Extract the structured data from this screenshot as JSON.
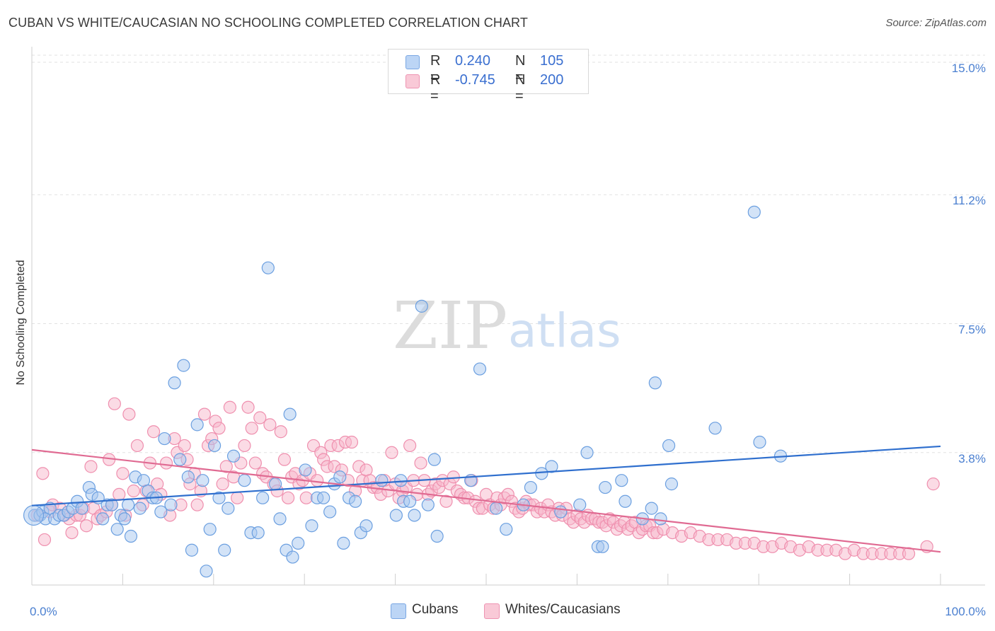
{
  "title": "CUBAN VS WHITE/CAUCASIAN NO SCHOOLING COMPLETED CORRELATION CHART",
  "source": "Source: ZipAtlas.com",
  "watermark": {
    "zip": "ZIP",
    "atlas": "atlas"
  },
  "legend_top": [
    {
      "r_label": "R =",
      "r_value": "0.240",
      "n_label": "N =",
      "n_value": "105",
      "color": "#a8c8f0"
    },
    {
      "r_label": "R =",
      "r_value": "-0.745",
      "n_label": "N =",
      "n_value": "200",
      "color": "#f7b8cb"
    }
  ],
  "legend_bottom": [
    {
      "label": "Cubans",
      "color": "#a8c8f0"
    },
    {
      "label": "Whites/Caucasians",
      "color": "#f7b8cb"
    }
  ],
  "chart_data": {
    "type": "scatter",
    "ylabel": "No Schooling Completed",
    "x_tick_labels": [
      "0.0%",
      "100.0%"
    ],
    "y_tick_labels": [
      "15.0%",
      "11.2%",
      "7.5%",
      "3.8%"
    ],
    "y_ticks": [
      15.0,
      11.2,
      7.5,
      3.8
    ],
    "xlim": [
      0,
      100
    ],
    "ylim": [
      0,
      15.0
    ],
    "grid": true,
    "series": [
      {
        "name": "Cubans",
        "color": "#6b9fe0",
        "fill": "#a8c8f0",
        "trend": {
          "x": [
            0,
            100
          ],
          "y": [
            2.28,
            3.98
          ],
          "color": "#2f6fce"
        },
        "points": [
          [
            0.3,
            2.0
          ],
          [
            0.9,
            2.0
          ],
          [
            1.2,
            2.1
          ],
          [
            1.5,
            1.9
          ],
          [
            2.0,
            2.2
          ],
          [
            2.5,
            1.9
          ],
          [
            3.0,
            2.0
          ],
          [
            3.5,
            2.0
          ],
          [
            4.0,
            2.1
          ],
          [
            4.5,
            2.2
          ],
          [
            5.0,
            2.4
          ],
          [
            5.5,
            2.2
          ],
          [
            6.3,
            2.8
          ],
          [
            6.6,
            2.6
          ],
          [
            7.3,
            2.5
          ],
          [
            7.8,
            1.9
          ],
          [
            8.3,
            2.3
          ],
          [
            8.8,
            2.3
          ],
          [
            9.4,
            1.6
          ],
          [
            9.8,
            2.0
          ],
          [
            10.2,
            1.9
          ],
          [
            10.6,
            2.3
          ],
          [
            10.9,
            1.4
          ],
          [
            11.4,
            3.1
          ],
          [
            11.9,
            2.2
          ],
          [
            12.3,
            3.0
          ],
          [
            12.8,
            2.7
          ],
          [
            13.3,
            2.5
          ],
          [
            13.7,
            2.5
          ],
          [
            14.2,
            2.1
          ],
          [
            14.6,
            4.2
          ],
          [
            15.3,
            2.3
          ],
          [
            15.7,
            5.8
          ],
          [
            16.3,
            3.6
          ],
          [
            16.7,
            6.3
          ],
          [
            17.2,
            3.1
          ],
          [
            17.6,
            1.0
          ],
          [
            18.2,
            4.6
          ],
          [
            18.8,
            3.0
          ],
          [
            19.2,
            0.4
          ],
          [
            19.6,
            1.6
          ],
          [
            20.1,
            4.0
          ],
          [
            20.6,
            2.5
          ],
          [
            21.2,
            1.0
          ],
          [
            21.6,
            2.2
          ],
          [
            22.2,
            3.7
          ],
          [
            23.4,
            3.0
          ],
          [
            24.1,
            1.5
          ],
          [
            24.9,
            1.5
          ],
          [
            25.4,
            2.5
          ],
          [
            26.0,
            9.1
          ],
          [
            26.8,
            2.9
          ],
          [
            27.3,
            1.9
          ],
          [
            28.0,
            1.0
          ],
          [
            28.4,
            4.9
          ],
          [
            28.7,
            0.8
          ],
          [
            29.3,
            1.2
          ],
          [
            30.1,
            3.3
          ],
          [
            30.8,
            1.7
          ],
          [
            31.4,
            2.5
          ],
          [
            32.1,
            2.5
          ],
          [
            32.8,
            2.1
          ],
          [
            33.3,
            2.9
          ],
          [
            33.9,
            3.1
          ],
          [
            34.3,
            1.2
          ],
          [
            34.9,
            2.5
          ],
          [
            35.6,
            2.4
          ],
          [
            36.2,
            1.5
          ],
          [
            36.8,
            1.7
          ],
          [
            38.5,
            3.0
          ],
          [
            40.1,
            2.0
          ],
          [
            40.6,
            3.0
          ],
          [
            40.9,
            2.4
          ],
          [
            41.6,
            2.4
          ],
          [
            42.1,
            2.0
          ],
          [
            42.9,
            8.0
          ],
          [
            43.6,
            2.3
          ],
          [
            44.3,
            3.6
          ],
          [
            44.6,
            1.4
          ],
          [
            48.3,
            3.0
          ],
          [
            49.3,
            6.2
          ],
          [
            51.1,
            2.2
          ],
          [
            52.2,
            1.6
          ],
          [
            54.1,
            2.3
          ],
          [
            54.9,
            2.8
          ],
          [
            56.1,
            3.2
          ],
          [
            57.2,
            3.4
          ],
          [
            58.2,
            2.1
          ],
          [
            60.3,
            2.3
          ],
          [
            61.1,
            3.8
          ],
          [
            62.3,
            1.1
          ],
          [
            62.8,
            1.1
          ],
          [
            63.1,
            2.8
          ],
          [
            64.9,
            3.0
          ],
          [
            65.3,
            2.4
          ],
          [
            67.2,
            1.9
          ],
          [
            68.2,
            2.2
          ],
          [
            68.6,
            5.8
          ],
          [
            69.2,
            1.9
          ],
          [
            70.1,
            4.0
          ],
          [
            70.4,
            2.9
          ],
          [
            75.2,
            4.5
          ],
          [
            79.5,
            10.7
          ],
          [
            80.1,
            4.1
          ],
          [
            82.4,
            3.7
          ]
        ]
      },
      {
        "name": "Whites/Caucasians",
        "color": "#ef8fae",
        "fill": "#f7b8cb",
        "trend": {
          "x": [
            0,
            100
          ],
          "y": [
            3.88,
            0.95
          ],
          "color": "#e06a92"
        },
        "points": [
          [
            0.6,
            2.0
          ],
          [
            1.2,
            3.2
          ],
          [
            1.4,
            1.3
          ],
          [
            2.0,
            2.1
          ],
          [
            2.3,
            2.3
          ],
          [
            3.1,
            2.2
          ],
          [
            3.6,
            2.0
          ],
          [
            4.1,
            1.9
          ],
          [
            4.4,
            1.5
          ],
          [
            4.9,
            2.0
          ],
          [
            5.3,
            2.0
          ],
          [
            5.7,
            2.2
          ],
          [
            6.0,
            1.7
          ],
          [
            6.5,
            3.4
          ],
          [
            6.8,
            2.2
          ],
          [
            7.2,
            1.9
          ],
          [
            7.6,
            2.0
          ],
          [
            8.2,
            2.1
          ],
          [
            8.5,
            3.6
          ],
          [
            8.8,
            2.3
          ],
          [
            9.1,
            5.2
          ],
          [
            9.6,
            2.6
          ],
          [
            10.0,
            3.2
          ],
          [
            10.3,
            2.0
          ],
          [
            10.7,
            4.9
          ],
          [
            11.2,
            2.7
          ],
          [
            11.6,
            4.0
          ],
          [
            12.2,
            2.3
          ],
          [
            12.6,
            2.7
          ],
          [
            13.0,
            3.5
          ],
          [
            13.4,
            4.4
          ],
          [
            13.8,
            2.9
          ],
          [
            14.2,
            2.6
          ],
          [
            14.8,
            3.5
          ],
          [
            15.2,
            2.0
          ],
          [
            15.7,
            4.2
          ],
          [
            16.0,
            3.8
          ],
          [
            16.4,
            2.3
          ],
          [
            16.8,
            4.0
          ],
          [
            17.1,
            3.6
          ],
          [
            17.4,
            2.9
          ],
          [
            17.9,
            3.2
          ],
          [
            18.2,
            2.3
          ],
          [
            18.6,
            2.7
          ],
          [
            19.0,
            4.9
          ],
          [
            19.4,
            4.0
          ],
          [
            19.8,
            4.2
          ],
          [
            20.2,
            4.7
          ],
          [
            20.6,
            4.5
          ],
          [
            21.0,
            2.9
          ],
          [
            21.4,
            3.4
          ],
          [
            21.8,
            5.1
          ],
          [
            22.2,
            3.1
          ],
          [
            22.6,
            2.5
          ],
          [
            23.0,
            3.5
          ],
          [
            23.4,
            4.0
          ],
          [
            23.8,
            5.1
          ],
          [
            24.2,
            4.5
          ],
          [
            24.6,
            3.5
          ],
          [
            25.1,
            4.8
          ],
          [
            25.4,
            3.2
          ],
          [
            25.8,
            3.1
          ],
          [
            26.2,
            4.6
          ],
          [
            26.6,
            2.9
          ],
          [
            27.0,
            2.7
          ],
          [
            27.4,
            4.4
          ],
          [
            27.8,
            3.6
          ],
          [
            28.2,
            2.5
          ],
          [
            28.6,
            3.1
          ],
          [
            29.0,
            3.2
          ],
          [
            29.4,
            2.9
          ],
          [
            29.8,
            3.0
          ],
          [
            30.2,
            2.5
          ],
          [
            30.6,
            3.2
          ],
          [
            31.0,
            4.0
          ],
          [
            31.4,
            3.0
          ],
          [
            31.8,
            3.8
          ],
          [
            32.1,
            3.6
          ],
          [
            32.5,
            3.4
          ],
          [
            32.9,
            4.0
          ],
          [
            33.3,
            3.4
          ],
          [
            33.7,
            4.0
          ],
          [
            34.1,
            3.3
          ],
          [
            34.5,
            4.1
          ],
          [
            34.8,
            3.0
          ],
          [
            35.2,
            4.1
          ],
          [
            35.6,
            2.7
          ],
          [
            36.0,
            3.4
          ],
          [
            36.4,
            3.0
          ],
          [
            36.8,
            3.3
          ],
          [
            37.2,
            3.0
          ],
          [
            37.6,
            2.8
          ],
          [
            38.0,
            2.8
          ],
          [
            38.4,
            2.6
          ],
          [
            38.8,
            3.0
          ],
          [
            39.2,
            2.7
          ],
          [
            39.6,
            3.8
          ],
          [
            40.0,
            2.9
          ],
          [
            40.4,
            2.5
          ],
          [
            40.8,
            2.7
          ],
          [
            41.2,
            2.8
          ],
          [
            41.6,
            4.0
          ],
          [
            42.0,
            3.0
          ],
          [
            42.4,
            2.6
          ],
          [
            42.8,
            3.5
          ],
          [
            43.2,
            3.0
          ],
          [
            43.6,
            2.6
          ],
          [
            44.0,
            2.7
          ],
          [
            44.4,
            2.9
          ],
          [
            44.8,
            2.8
          ],
          [
            45.2,
            3.0
          ],
          [
            45.6,
            2.4
          ],
          [
            46.0,
            2.9
          ],
          [
            46.4,
            3.1
          ],
          [
            46.8,
            2.7
          ],
          [
            47.2,
            2.6
          ],
          [
            47.6,
            2.5
          ],
          [
            48.0,
            2.5
          ],
          [
            48.4,
            3.0
          ],
          [
            48.8,
            2.4
          ],
          [
            49.2,
            2.2
          ],
          [
            49.6,
            2.2
          ],
          [
            50.0,
            2.6
          ],
          [
            50.4,
            2.3
          ],
          [
            50.8,
            2.2
          ],
          [
            51.2,
            2.5
          ],
          [
            51.6,
            2.3
          ],
          [
            52.0,
            2.5
          ],
          [
            52.4,
            2.6
          ],
          [
            52.8,
            2.4
          ],
          [
            53.2,
            2.2
          ],
          [
            53.6,
            2.1
          ],
          [
            54.0,
            2.2
          ],
          [
            54.4,
            2.4
          ],
          [
            54.8,
            2.3
          ],
          [
            55.2,
            2.3
          ],
          [
            55.6,
            2.1
          ],
          [
            56.0,
            2.2
          ],
          [
            56.4,
            2.1
          ],
          [
            56.8,
            2.3
          ],
          [
            57.2,
            2.1
          ],
          [
            57.6,
            2.0
          ],
          [
            58.0,
            2.2
          ],
          [
            58.4,
            2.0
          ],
          [
            58.8,
            2.2
          ],
          [
            59.2,
            1.9
          ],
          [
            59.6,
            1.8
          ],
          [
            60.0,
            2.0
          ],
          [
            60.4,
            1.9
          ],
          [
            60.8,
            1.8
          ],
          [
            61.2,
            2.0
          ],
          [
            61.6,
            1.9
          ],
          [
            62.0,
            1.9
          ],
          [
            62.4,
            1.8
          ],
          [
            62.8,
            1.8
          ],
          [
            63.2,
            1.7
          ],
          [
            63.6,
            1.9
          ],
          [
            64.0,
            1.8
          ],
          [
            64.4,
            1.6
          ],
          [
            64.8,
            1.7
          ],
          [
            65.2,
            1.8
          ],
          [
            65.6,
            1.6
          ],
          [
            66.0,
            1.7
          ],
          [
            66.4,
            1.8
          ],
          [
            66.8,
            1.5
          ],
          [
            67.2,
            1.6
          ],
          [
            67.6,
            1.7
          ],
          [
            68.0,
            1.7
          ],
          [
            68.4,
            1.5
          ],
          [
            68.8,
            1.5
          ],
          [
            69.5,
            1.6
          ],
          [
            70.5,
            1.5
          ],
          [
            71.5,
            1.4
          ],
          [
            72.5,
            1.5
          ],
          [
            73.5,
            1.4
          ],
          [
            74.5,
            1.3
          ],
          [
            75.5,
            1.3
          ],
          [
            76.5,
            1.3
          ],
          [
            77.5,
            1.2
          ],
          [
            78.5,
            1.2
          ],
          [
            79.5,
            1.2
          ],
          [
            80.5,
            1.1
          ],
          [
            81.5,
            1.1
          ],
          [
            82.5,
            1.2
          ],
          [
            83.5,
            1.1
          ],
          [
            84.5,
            1.0
          ],
          [
            85.5,
            1.1
          ],
          [
            86.5,
            1.0
          ],
          [
            87.5,
            1.0
          ],
          [
            88.5,
            1.0
          ],
          [
            89.5,
            0.9
          ],
          [
            90.5,
            1.0
          ],
          [
            91.5,
            0.9
          ],
          [
            92.5,
            0.9
          ],
          [
            93.5,
            0.9
          ],
          [
            94.5,
            0.9
          ],
          [
            95.5,
            0.9
          ],
          [
            96.5,
            0.9
          ],
          [
            98.5,
            1.1
          ],
          [
            99.2,
            2.9
          ]
        ]
      }
    ]
  }
}
